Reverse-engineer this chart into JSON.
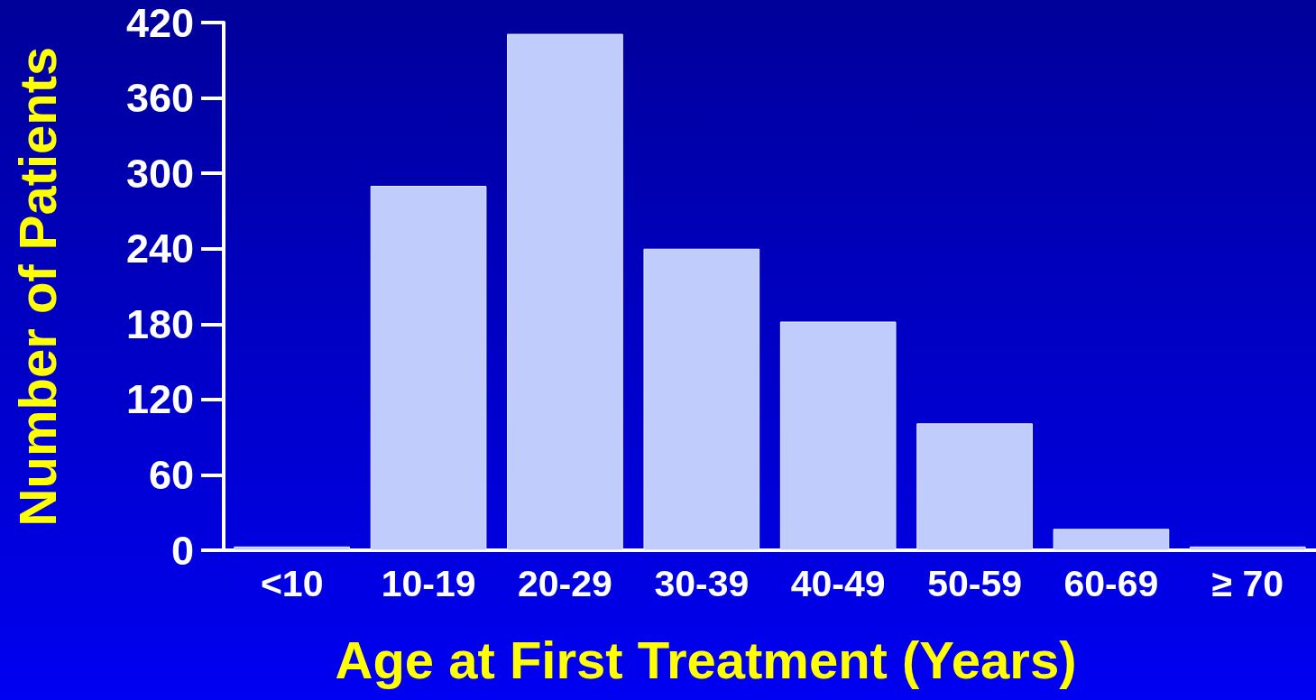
{
  "chart_data": {
    "type": "bar",
    "xlabel": "Age at First Treatment (Years)",
    "ylabel": "Number of Patients",
    "categories": [
      "<10",
      "10-19",
      "20-29",
      "30-39",
      "40-49",
      "50-59",
      "60-69",
      "≥ 70"
    ],
    "values": [
      3,
      290,
      411,
      240,
      182,
      101,
      17,
      3
    ],
    "color": "#c0ccfc",
    "ylim": [
      0,
      420
    ],
    "yticks": [
      0,
      60,
      120,
      180,
      240,
      300,
      360,
      420
    ]
  }
}
